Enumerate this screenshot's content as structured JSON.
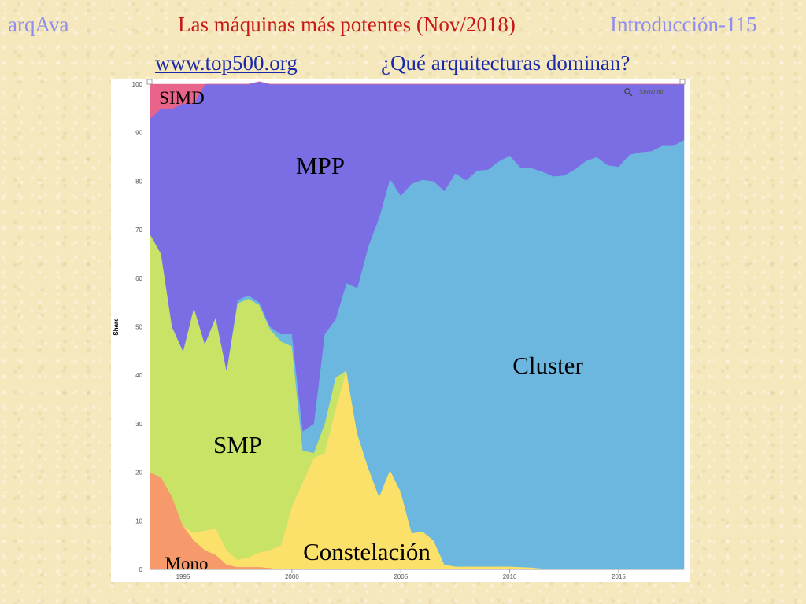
{
  "header": {
    "course": "arqAva",
    "title_main": "Las máquinas más potentes (Nov/2018)",
    "title_section": "Introducción-115",
    "site": "www.top500.org",
    "question": "¿Qué arquitecturas dominan?"
  },
  "chart_data": {
    "type": "area",
    "stacked": true,
    "ylabel": "Share",
    "xlabel": "",
    "ylim": [
      0,
      100
    ],
    "yticks": [
      0,
      10,
      20,
      30,
      40,
      50,
      60,
      70,
      80,
      90,
      100
    ],
    "xticks": [
      1995,
      2000,
      2005,
      2010,
      2015
    ],
    "show_all_label": "Show all",
    "x": [
      1993.5,
      1994,
      1994.5,
      1995,
      1995.5,
      1996,
      1996.5,
      1997,
      1997.5,
      1998,
      1998.5,
      1999,
      1999.5,
      2000,
      2000.5,
      2001,
      2001.5,
      2002,
      2002.5,
      2003,
      2003.5,
      2004,
      2004.5,
      2005,
      2005.5,
      2006,
      2006.5,
      2007,
      2007.5,
      2008,
      2008.5,
      2009,
      2009.5,
      2010,
      2010.5,
      2011,
      2011.5,
      2012,
      2012.5,
      2013,
      2013.5,
      2014,
      2014.5,
      2015,
      2015.5,
      2016,
      2016.5,
      2017,
      2017.5,
      2018
    ],
    "series": [
      {
        "name": "Mono",
        "color": "#f69a6c",
        "values": [
          20,
          19,
          15,
          9,
          6,
          4,
          3,
          1,
          0.5,
          0.5,
          0.5,
          0.3,
          0,
          0,
          0,
          0,
          0,
          0,
          0,
          0,
          0,
          0,
          0,
          0,
          0,
          0,
          0,
          0,
          0,
          0,
          0,
          0,
          0,
          0,
          0,
          0,
          0,
          0,
          0,
          0,
          0,
          0,
          0,
          0,
          0,
          0,
          0,
          0,
          0,
          0
        ]
      },
      {
        "name": "Constelación",
        "color": "#fbe06a",
        "values": [
          0,
          0,
          0,
          0,
          1.5,
          4,
          5.5,
          3,
          1.5,
          2,
          3,
          3.7,
          5,
          13,
          18,
          23,
          24,
          33,
          41,
          28,
          21,
          15,
          20.5,
          16,
          7.5,
          7.8,
          6,
          1,
          0.6,
          0.6,
          0.6,
          0.6,
          0.6,
          0.6,
          0.5,
          0.4,
          0.2,
          0,
          0,
          0,
          0,
          0,
          0,
          0,
          0,
          0,
          0,
          0,
          0,
          0
        ]
      },
      {
        "name": "SMP",
        "color": "#c9e367",
        "values": [
          49,
          46,
          35,
          36,
          46.5,
          38.5,
          43.5,
          37,
          52.8,
          53.3,
          51,
          45.5,
          42,
          33,
          6.5,
          1,
          6,
          6.5,
          0,
          0,
          0,
          0,
          0,
          0,
          0,
          0,
          0,
          0,
          0,
          0,
          0,
          0,
          0,
          0,
          0,
          0,
          0,
          0,
          0,
          0,
          0,
          0,
          0,
          0,
          0,
          0,
          0,
          0,
          0,
          0
        ]
      },
      {
        "name": "Cluster",
        "color": "#6bb7e0",
        "values": [
          0,
          0,
          0,
          0,
          0,
          0,
          0,
          0,
          0.7,
          0.7,
          0.5,
          0.5,
          1.5,
          2.5,
          4,
          6,
          18.5,
          12,
          18,
          30,
          45.5,
          57.5,
          60,
          61,
          72,
          72.5,
          74,
          77,
          81,
          79.6,
          81.6,
          81.8,
          83.5,
          84.7,
          82.3,
          82.3,
          81.8,
          81,
          81.2,
          82.5,
          84.2,
          85,
          83.3,
          83,
          85.5,
          86,
          86.2,
          87.3,
          87.3,
          88.5
        ]
      },
      {
        "name": "MPP",
        "color": "#7b6de4",
        "values": [
          24,
          30,
          45,
          51,
          42,
          53.5,
          48,
          59,
          44.5,
          43.5,
          45.5,
          50,
          51.5,
          51.5,
          71.5,
          70,
          51.5,
          48.5,
          41,
          42,
          33.5,
          27.5,
          19.5,
          23,
          20.5,
          19.7,
          20,
          22,
          18.4,
          19.8,
          17.8,
          17.6,
          15.9,
          14.7,
          17.2,
          17.3,
          18,
          19,
          18.8,
          17.5,
          15.8,
          15,
          16.7,
          17,
          14.5,
          14,
          13.8,
          12.7,
          12.7,
          11.5
        ]
      },
      {
        "name": "SIMD",
        "color": "#e9648a",
        "values": [
          7,
          5,
          5,
          4,
          4,
          0,
          0,
          0,
          0,
          0,
          0,
          0,
          0,
          0,
          0,
          0,
          0,
          0,
          0,
          0,
          0,
          0,
          0,
          0,
          0,
          0,
          0,
          0,
          0,
          0,
          0,
          0,
          0,
          0,
          0,
          0,
          0,
          0,
          0,
          0,
          0,
          0,
          0,
          0,
          0,
          0,
          0,
          0,
          0,
          0
        ]
      }
    ],
    "area_labels": [
      {
        "series": "SIMD",
        "text": "SIMD"
      },
      {
        "series": "MPP",
        "text": "MPP"
      },
      {
        "series": "Cluster",
        "text": "Cluster"
      },
      {
        "series": "SMP",
        "text": "SMP"
      },
      {
        "series": "Constelación",
        "text": "Constelación"
      },
      {
        "series": "Mono",
        "text": "Mono"
      }
    ]
  }
}
